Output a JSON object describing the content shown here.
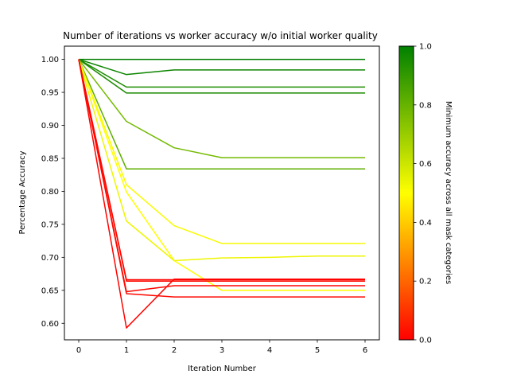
{
  "chart_data": {
    "type": "line",
    "title": "Number of iterations vs worker accuracy w/o initial worker quality",
    "xlabel": "Iteration Number",
    "ylabel": "Percentage Accuracy",
    "xlim": [
      -0.3,
      6.3
    ],
    "ylim": [
      0.575,
      1.02
    ],
    "x_ticks": [
      0,
      1,
      2,
      3,
      4,
      5,
      6
    ],
    "y_ticks": [
      0.6,
      0.65,
      0.7,
      0.75,
      0.8,
      0.85,
      0.9,
      0.95,
      1.0
    ],
    "grid": false,
    "x": [
      0,
      1,
      2,
      3,
      4,
      5,
      6
    ],
    "series": [
      {
        "values": [
          1.0,
          1.0,
          1.0,
          1.0,
          1.0,
          1.0,
          1.0
        ],
        "color": "#007F00"
      },
      {
        "values": [
          1.0,
          0.977,
          0.984,
          0.984,
          0.984,
          0.984,
          0.984
        ],
        "color": "#0C8500"
      },
      {
        "values": [
          1.0,
          0.958,
          0.958,
          0.958,
          0.958,
          0.958,
          0.958
        ],
        "color": "#1C8C00"
      },
      {
        "values": [
          1.0,
          0.949,
          0.949,
          0.949,
          0.949,
          0.949,
          0.949
        ],
        "color": "#1A8B00"
      },
      {
        "values": [
          1.0,
          0.906,
          0.866,
          0.851,
          0.851,
          0.851,
          0.851
        ],
        "color": "#73BA00"
      },
      {
        "values": [
          1.0,
          0.834,
          0.834,
          0.834,
          0.834,
          0.834,
          0.834
        ],
        "color": "#5FAF00"
      },
      {
        "values": [
          1.0,
          0.81,
          0.748,
          0.721,
          0.721,
          0.721,
          0.721
        ],
        "color": "#F8FB00"
      },
      {
        "values": [
          1.0,
          0.799,
          0.695,
          0.65,
          0.65,
          0.65,
          0.65
        ],
        "color": "#FFFF00"
      },
      {
        "values": [
          1.0,
          0.755,
          0.695,
          0.699,
          0.7,
          0.702,
          0.702
        ],
        "color": "#EEF600"
      },
      {
        "values": [
          1.0,
          0.666,
          0.666,
          0.666,
          0.666,
          0.666,
          0.666
        ],
        "color": "#FF0000"
      },
      {
        "values": [
          1.0,
          0.664,
          0.664,
          0.664,
          0.664,
          0.664,
          0.664
        ],
        "color": "#FF0A00"
      },
      {
        "values": [
          1.0,
          0.648,
          0.657,
          0.657,
          0.657,
          0.657,
          0.657
        ],
        "color": "#FF0500"
      },
      {
        "values": [
          1.0,
          0.645,
          0.64,
          0.64,
          0.64,
          0.64,
          0.64
        ],
        "color": "#FF0800"
      },
      {
        "values": [
          1.0,
          0.593,
          0.667,
          0.667,
          0.667,
          0.667,
          0.667
        ],
        "color": "#FF0300"
      }
    ],
    "colorbar": {
      "label": "Minimum accuracy across all mask categories",
      "range": [
        0.0,
        1.0
      ],
      "ticks": [
        0.0,
        0.2,
        0.4,
        0.6,
        0.8,
        1.0
      ],
      "tick_labels": [
        "0.0",
        "0.2",
        "0.4",
        "0.6",
        "0.8",
        "1.0"
      ],
      "colors": [
        "#FF0000",
        "#FFFF00",
        "#008000"
      ]
    }
  }
}
